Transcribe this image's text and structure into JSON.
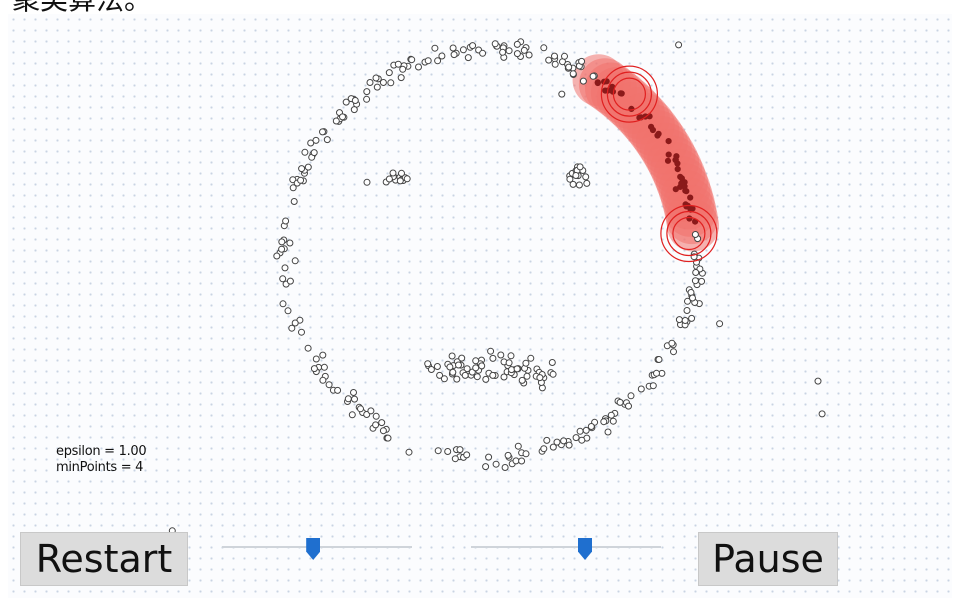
{
  "header": {
    "title_fragment": "聚类算法。"
  },
  "params": {
    "epsilon_label": "epsilon = 1.00",
    "minpoints_label": "minPoints = 4",
    "epsilon": 1.0,
    "min_points": 4
  },
  "controls": {
    "restart_label": "Restart",
    "pause_label": "Pause",
    "epsilon_slider_fraction": 0.48,
    "minpoints_slider_fraction": 0.6,
    "accent_color": "#1f6fcf"
  },
  "colors": {
    "point_stroke": "#444444",
    "cluster_fill": "#f0736d",
    "cluster_point": "#8b1a1a",
    "ring": "#e02020"
  },
  "scatter": {
    "unit_note": "normalized unit coordinates, origin at face center, radius 1 = face outline",
    "face_radius": 1.0,
    "noise_points": [
      [
        0.92,
        -1.02
      ],
      [
        1.12,
        0.34
      ],
      [
        -1.55,
        1.35
      ],
      [
        0.35,
        -0.78
      ],
      [
        -0.6,
        -0.35
      ],
      [
        1.6,
        0.62
      ],
      [
        1.62,
        0.78
      ]
    ]
  },
  "cluster": {
    "arc_start_deg": -58,
    "arc_end_deg": -8,
    "core_points": [
      [
        0.68,
        -0.78
      ],
      [
        0.97,
        -0.1
      ]
    ]
  }
}
